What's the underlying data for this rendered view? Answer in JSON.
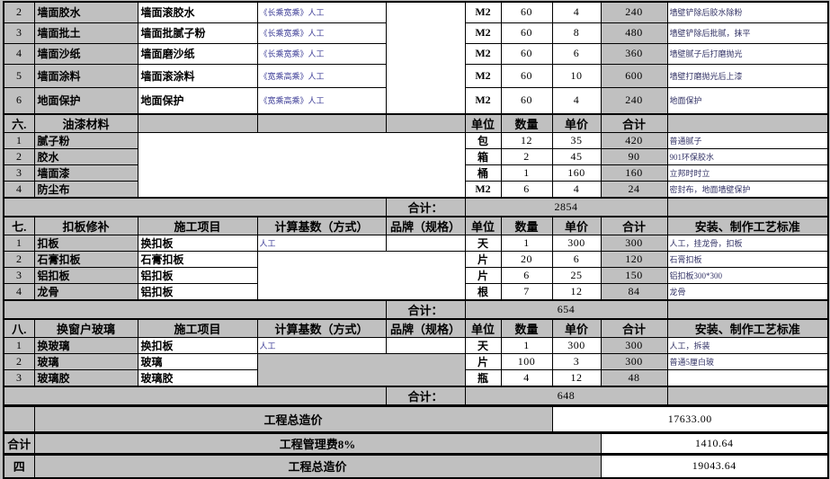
{
  "colors": {
    "cell_gray": "#c0c0c0",
    "cell_white": "#ffffff",
    "grid_border": "#000000",
    "calc_text": "#3c3c96",
    "remark_text": "#333366"
  },
  "grid": {
    "rows": [
      {
        "cells": [
          "2",
          "墙面胶水",
          "墙面滚胶水",
          "《长乘宽乘》人工",
          "",
          "M2",
          "60",
          "4",
          "240",
          "墙壁铲除后胶水除粉"
        ]
      },
      {
        "cells": [
          "3",
          "墙面批土",
          "墙面批腻子粉",
          "《长乘宽乘》人工",
          "M2",
          "60",
          "8",
          "480",
          "墙壁铲除后批腻，抹平"
        ]
      },
      {
        "cells": [
          "4",
          "墙面沙纸",
          "墙面磨沙纸",
          "《长乘宽乘》人工",
          "M2",
          "60",
          "6",
          "360",
          "墙壁腻子后打磨抛光"
        ]
      },
      {
        "cells": [
          "5",
          "墙面涂料",
          "墙面滚涂料",
          "《宽乘高乘》人工",
          "M2",
          "60",
          "10",
          "600",
          "墙壁打磨抛光后上漆"
        ]
      },
      {
        "cells": [
          "6",
          "地面保护",
          "地面保护",
          "《宽乘高乘》人工",
          "M2",
          "60",
          "4",
          "240",
          "地面保护"
        ]
      },
      {
        "cells": [
          "六.",
          "油漆材料",
          "",
          "",
          "",
          "单位",
          "数量",
          "单价",
          "合计",
          ""
        ]
      },
      {
        "cells": [
          "1",
          "腻子粉",
          "",
          "包",
          "12",
          "35",
          "420",
          "普通腻子"
        ]
      },
      {
        "cells": [
          "2",
          "胶水",
          "箱",
          "2",
          "45",
          "90",
          "901环保胶水"
        ]
      },
      {
        "cells": [
          "3",
          "墙面漆",
          "桶",
          "1",
          "160",
          "160",
          "立邦时时立"
        ]
      },
      {
        "cells": [
          "4",
          "防尘布",
          "M2",
          "6",
          "4",
          "24",
          "密封布，地面墙壁保护"
        ]
      },
      {
        "cells": [
          "",
          "合计：",
          "2854",
          ""
        ]
      },
      {
        "cells": [
          "七.",
          "扣板修补",
          "施工项目",
          "计算基数（方式）",
          "品牌（规格）",
          "单位",
          "数量",
          "单价",
          "合计",
          "安装、制作工艺标准"
        ]
      },
      {
        "cells": [
          "1",
          "扣板",
          "换扣板",
          "人工",
          "",
          "天",
          "1",
          "300",
          "300",
          "人工，挂龙骨，扣板"
        ]
      },
      {
        "cells": [
          "2",
          "石膏扣板",
          "石膏扣板",
          "",
          "片",
          "20",
          "6",
          "120",
          "石膏扣板"
        ]
      },
      {
        "cells": [
          "3",
          "铝扣板",
          "铝扣板",
          "片",
          "6",
          "25",
          "150",
          "铝扣板300*300"
        ]
      },
      {
        "cells": [
          "4",
          "龙骨",
          "铝扣板",
          "根",
          "7",
          "12",
          "84",
          "龙骨"
        ]
      },
      {
        "cells": [
          "",
          "合计：",
          "654",
          ""
        ]
      },
      {
        "cells": [
          "八.",
          "换窗户玻璃",
          "施工项目",
          "计算基数（方式）",
          "品牌（规格）",
          "单位",
          "数量",
          "单价",
          "合计",
          "安装、制作工艺标准"
        ]
      },
      {
        "cells": [
          "1",
          "换玻璃",
          "换扣板",
          "人工",
          "",
          "天",
          "1",
          "300",
          "300",
          "人工，拆装"
        ]
      },
      {
        "cells": [
          "2",
          "玻璃",
          "玻璃",
          "",
          "片",
          "100",
          "3",
          "300",
          "普通5厘白玻"
        ]
      },
      {
        "cells": [
          "3",
          "玻璃胶",
          "玻璃胶",
          "瓶",
          "4",
          "12",
          "48",
          ""
        ]
      },
      {
        "cells": [
          "",
          "合计：",
          "648",
          ""
        ]
      },
      {
        "cells": [
          "",
          "工程总造价",
          "17633.00"
        ]
      },
      {
        "cells": [
          "合计",
          "工程管理费8%",
          "1410.64"
        ]
      },
      {
        "cells": [
          "四",
          "工程总造价",
          "19043.64"
        ]
      }
    ]
  }
}
